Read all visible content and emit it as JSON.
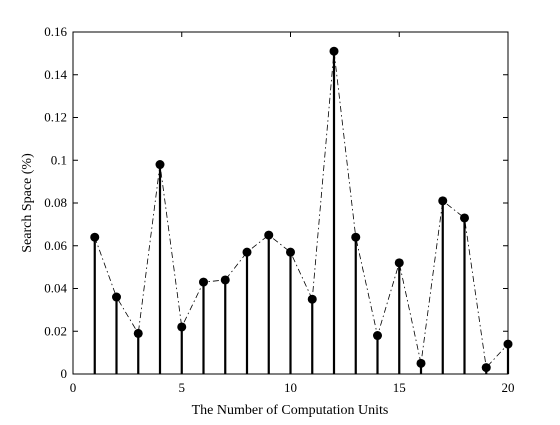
{
  "chart_data": {
    "type": "stem-line",
    "title": "",
    "xlabel": "The Number of Computation Units",
    "ylabel": "Search Space (%)",
    "xlim": [
      0,
      20
    ],
    "ylim": [
      0,
      0.16
    ],
    "xticks": [
      0,
      5,
      10,
      15,
      20
    ],
    "yticks": [
      0,
      0.02,
      0.04,
      0.06,
      0.08,
      0.1,
      0.12,
      0.14,
      0.16
    ],
    "xtick_labels": [
      "0",
      "5",
      "10",
      "15",
      "20"
    ],
    "ytick_labels": [
      "0",
      "0.02",
      "0.04",
      "0.06",
      "0.08",
      "0.1",
      "0.12",
      "0.14",
      "0.16"
    ],
    "grid": false,
    "line_style": "dash-dot",
    "marker": "filled-circle",
    "color": "#000000",
    "x": [
      1,
      2,
      3,
      4,
      5,
      6,
      7,
      8,
      9,
      10,
      11,
      12,
      13,
      14,
      15,
      16,
      17,
      18,
      19,
      20
    ],
    "values": [
      0.064,
      0.036,
      0.019,
      0.098,
      0.022,
      0.043,
      0.044,
      0.057,
      0.065,
      0.057,
      0.035,
      0.151,
      0.064,
      0.018,
      0.052,
      0.005,
      0.081,
      0.073,
      0.003,
      0.014
    ]
  }
}
